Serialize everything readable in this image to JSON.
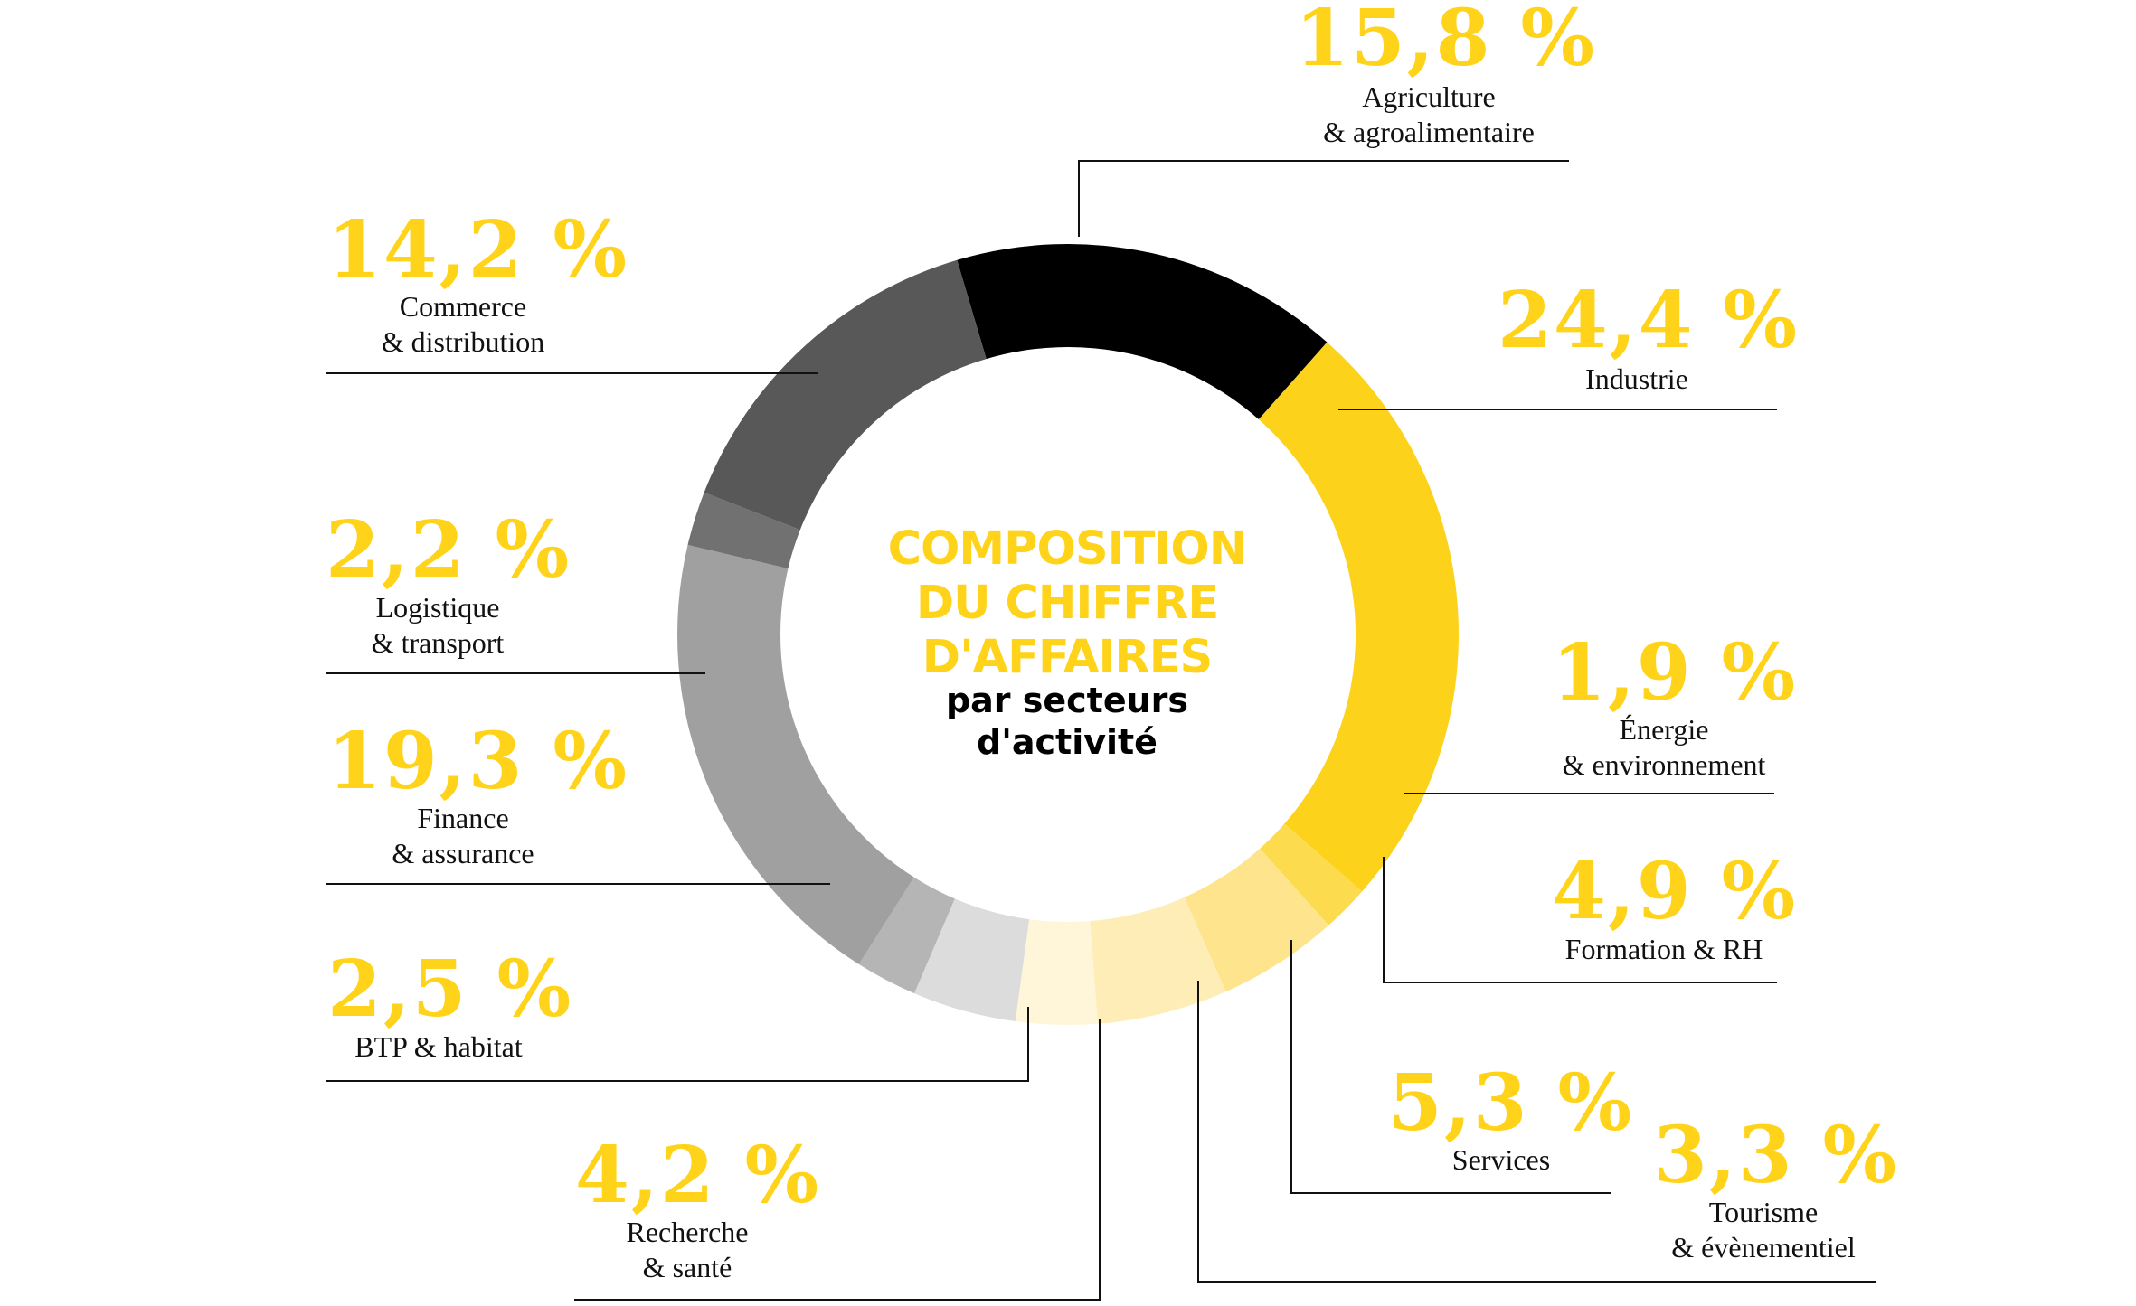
{
  "colors": {
    "accent": "#FFD31A",
    "text": "#111111",
    "leader_line": "#111111"
  },
  "chart_data": {
    "type": "pie",
    "variant": "donut",
    "title_lines": [
      "COMPOSITION",
      "DU CHIFFRE",
      "D'AFFAIRES"
    ],
    "subtitle_lines": [
      "par secteurs",
      "d'activité"
    ],
    "slices": [
      {
        "pct_label": "15,8 %",
        "value": 15.8,
        "label_lines": [
          "Agriculture",
          "& agroalimentaire"
        ],
        "color": "#000000"
      },
      {
        "pct_label": "24,4 %",
        "value": 24.4,
        "label_lines": [
          "Industrie"
        ],
        "color": "#FCD31A"
      },
      {
        "pct_label": "1,9 %",
        "value": 1.9,
        "label_lines": [
          "Énergie",
          "& environnement"
        ],
        "color": "#FCDB4E"
      },
      {
        "pct_label": "4,9 %",
        "value": 4.9,
        "label_lines": [
          "Formation & RH"
        ],
        "color": "#FEE58D"
      },
      {
        "pct_label": "5,3 %",
        "value": 5.3,
        "label_lines": [
          "Services"
        ],
        "color": "#FEEDB6"
      },
      {
        "pct_label": "3,3 %",
        "value": 3.3,
        "label_lines": [
          "Tourisme",
          "& évènementiel"
        ],
        "color": "#FFF6DA"
      },
      {
        "pct_label": "4,2 %",
        "value": 4.2,
        "label_lines": [
          "Recherche",
          "& santé"
        ],
        "color": "#DCDCDC"
      },
      {
        "pct_label": "2,5 %",
        "value": 2.5,
        "label_lines": [
          "BTP & habitat"
        ],
        "color": "#B5B5B5"
      },
      {
        "pct_label": "19,3 %",
        "value": 19.3,
        "label_lines": [
          "Finance",
          "& assurance"
        ],
        "color": "#A0A0A0"
      },
      {
        "pct_label": "2,2 %",
        "value": 2.2,
        "label_lines": [
          "Logistique",
          "& transport"
        ],
        "color": "#717171"
      },
      {
        "pct_label": "14,2 %",
        "value": 14.2,
        "label_lines": [
          "Commerce",
          "& distribution"
        ],
        "color": "#585858"
      }
    ]
  }
}
